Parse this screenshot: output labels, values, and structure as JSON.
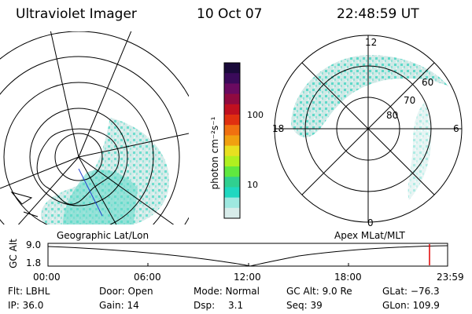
{
  "header": {
    "title": "Ultraviolet Imager",
    "date": "10 Oct 07",
    "time": "22:48:59 UT"
  },
  "colorbar": {
    "unit_label": "photon cm⁻²s⁻¹",
    "ticks": [
      "100",
      "10"
    ],
    "colors": [
      "#1a0a3a",
      "#3a0a5a",
      "#6a0a60",
      "#900a40",
      "#c01020",
      "#e03010",
      "#f07010",
      "#f0a010",
      "#e8e020",
      "#b0f020",
      "#60e840",
      "#30d090",
      "#20d8c0",
      "#9ee8e0",
      "#d8ecea"
    ]
  },
  "left_map": {
    "caption": "Geographic Lat/Lon",
    "aurora_color": "#5fd9c9"
  },
  "right_map": {
    "caption": "Apex MLat/MLT",
    "mlt_labels": {
      "top": "12",
      "left": "18",
      "right": "6",
      "bottom": "0"
    },
    "lat_labels": [
      "60",
      "70",
      "80"
    ]
  },
  "timeline": {
    "y_axis_label": "GC Alt",
    "y_ticks": [
      "9.0",
      "1.8"
    ],
    "x_ticks": [
      "00:00",
      "06:00",
      "12:00",
      "18:00",
      "23:59"
    ],
    "marker_color": "#e00000"
  },
  "info": {
    "filter": "Flt: LBHL",
    "ip": "IP: 36.0",
    "door": "Door: Open",
    "gain": "Gain: 14",
    "mode": "Mode: Normal",
    "dsp_label": "Dsp:",
    "dsp_value": "3.1",
    "gc_alt": "GC Alt: 9.0 Re",
    "seq": "Seq: 39",
    "glat": "GLat: −76.3",
    "glon": "GLon: 109.9"
  }
}
